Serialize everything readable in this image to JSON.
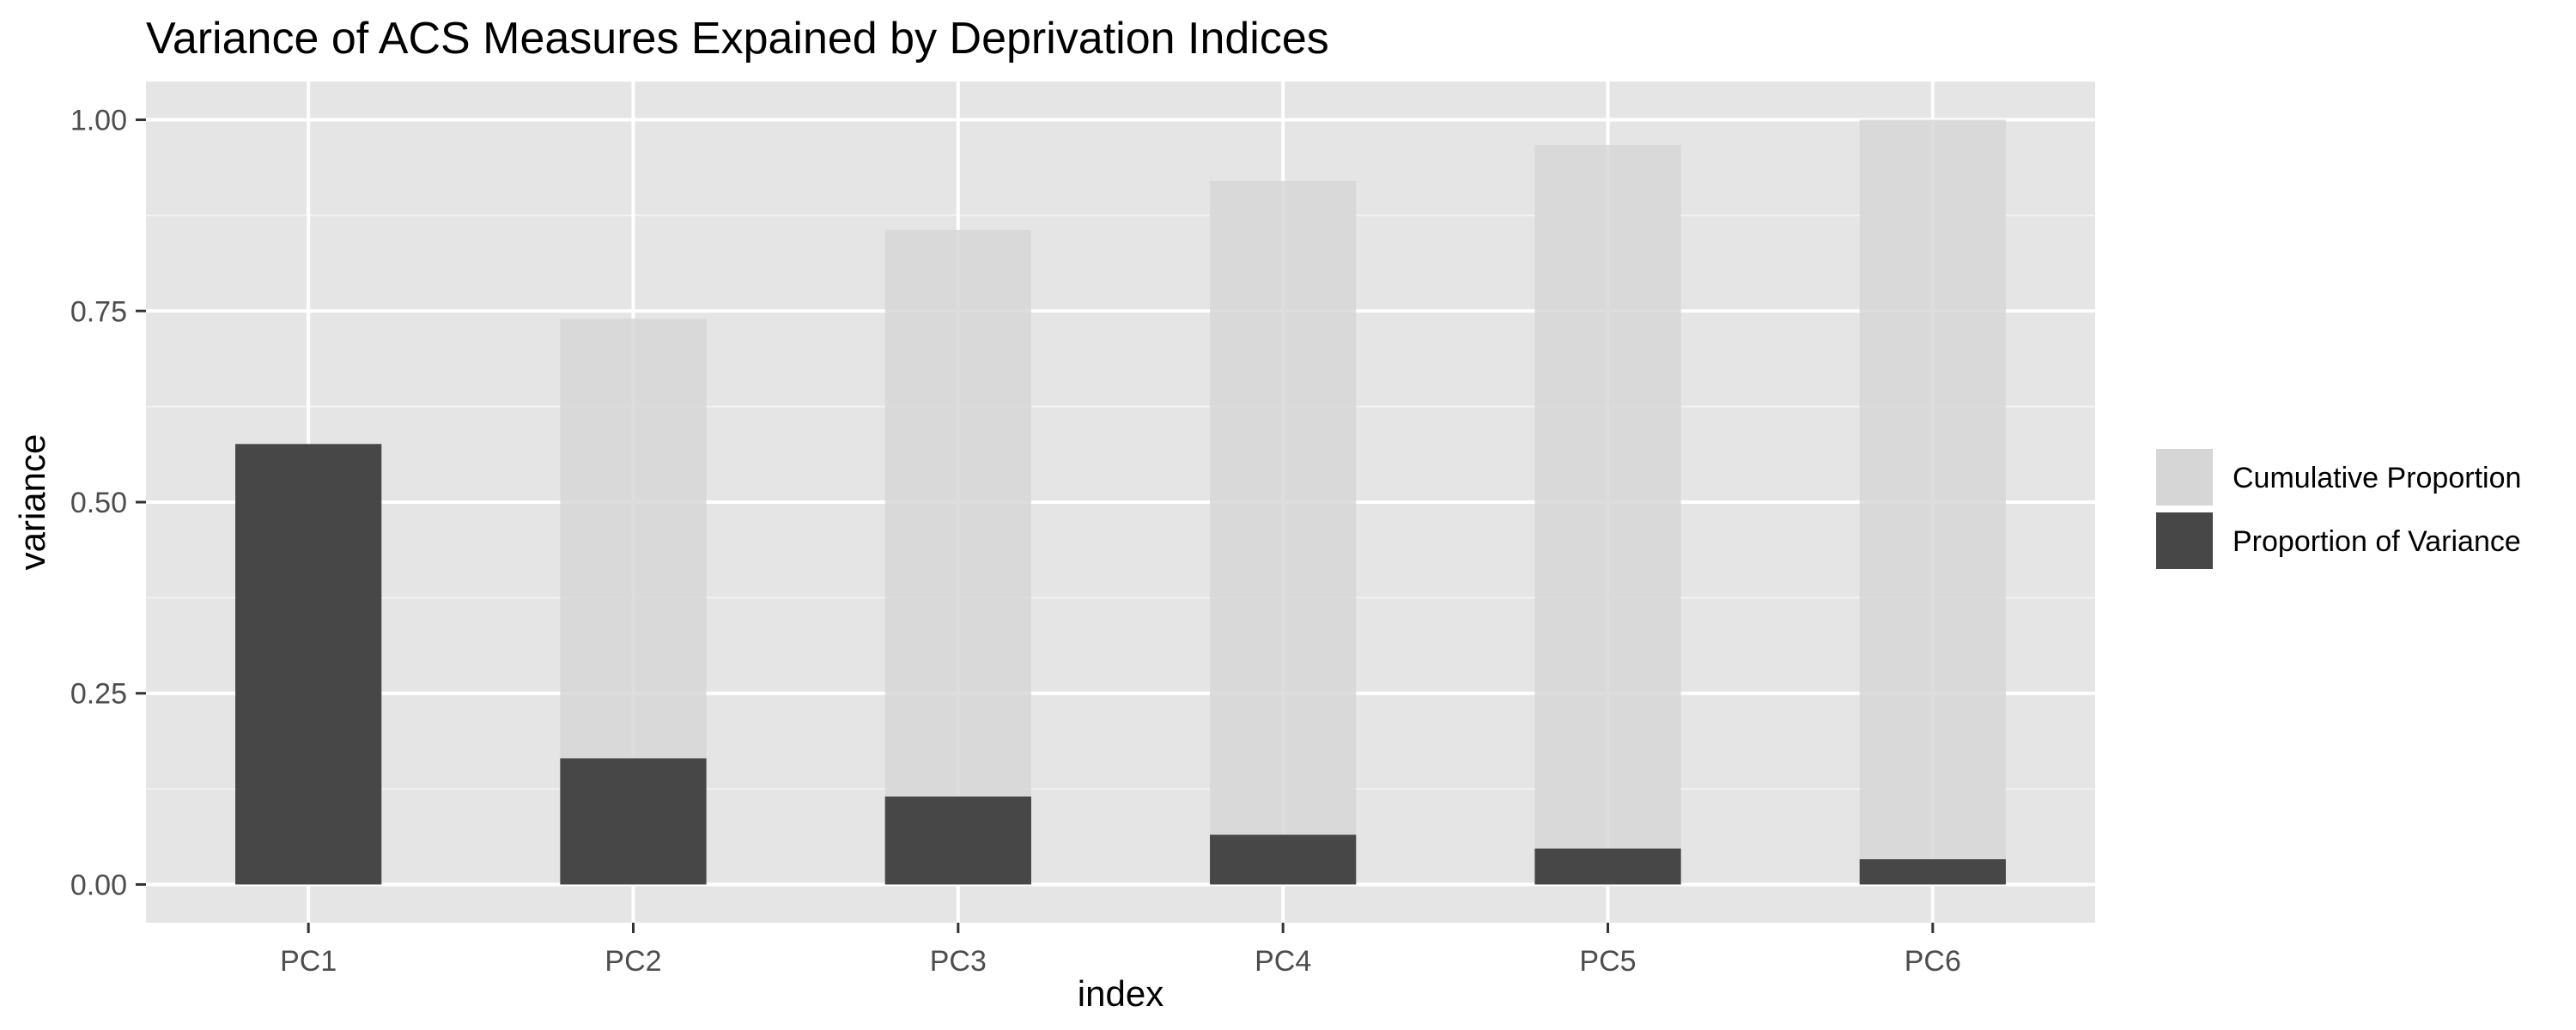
{
  "chart_data": {
    "type": "bar",
    "title": "Variance of ACS Measures Expained by Deprivation Indices",
    "xlabel": "index",
    "ylabel": "variance",
    "categories": [
      "PC1",
      "PC2",
      "PC3",
      "PC4",
      "PC5",
      "PC6"
    ],
    "ylim": [
      -0.05,
      1.05
    ],
    "yticks": [
      0.0,
      0.25,
      0.5,
      0.75,
      1.0
    ],
    "ytick_labels": [
      "0.00",
      "0.25",
      "0.50",
      "0.75",
      "1.00"
    ],
    "grid": true,
    "legend_position": "right",
    "series": [
      {
        "name": "Cumulative Proportion",
        "color": "#d6d6d6",
        "values": [
          0.576,
          0.74,
          0.856,
          0.92,
          0.967,
          1.0
        ]
      },
      {
        "name": "Proportion of Variance",
        "color": "#474747",
        "values": [
          0.576,
          0.165,
          0.115,
          0.065,
          0.047,
          0.033
        ]
      }
    ]
  }
}
